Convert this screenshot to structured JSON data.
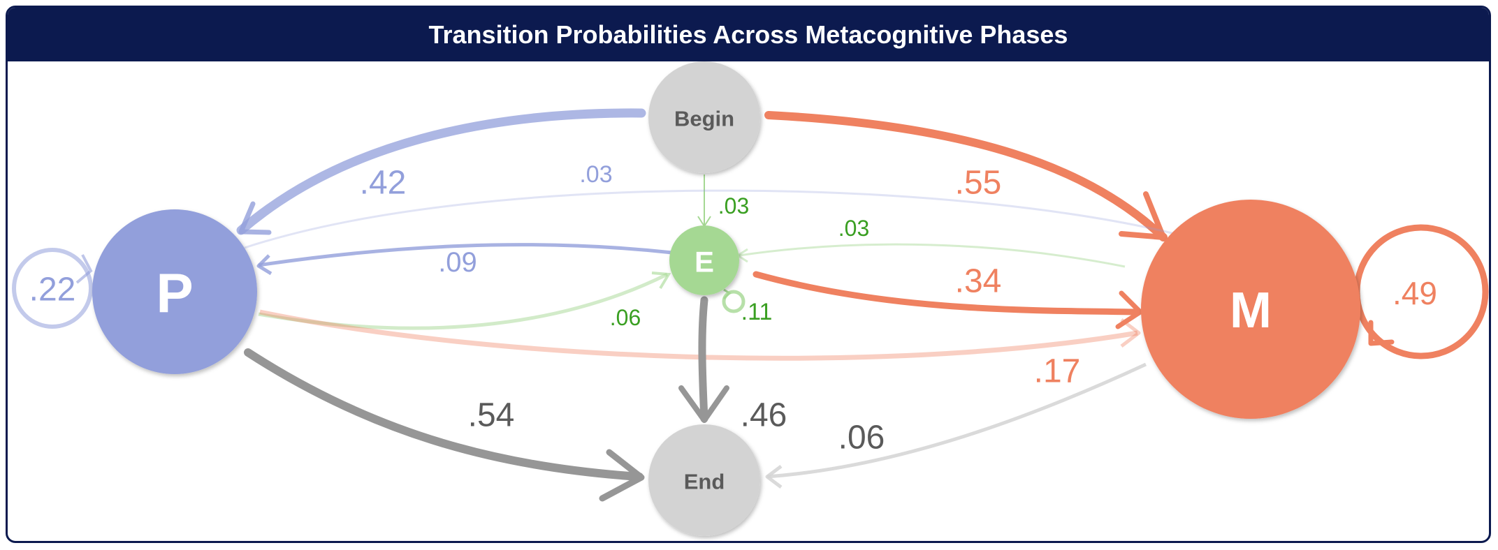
{
  "title": "Transition Probabilities Across Metacognitive Phases",
  "colors": {
    "frame": "#0c1a4f",
    "planning": "#929fdb",
    "monitoring": "#ef8160",
    "evaluation": "#a5d893",
    "neutral": "#d3d3d3",
    "neutral_text": "#5a5a5a",
    "end_edge": "#969696",
    "eval_text": "#3a9f22"
  },
  "nodes": {
    "begin": "Begin",
    "planning": "P",
    "evaluation": "E",
    "monitoring": "M",
    "end": "End"
  },
  "edges": {
    "begin_to_p": ".42",
    "begin_to_m": ".55",
    "begin_to_e": ".03",
    "m_to_p": ".03",
    "m_to_e": ".03",
    "e_to_p": ".09",
    "e_to_m": ".34",
    "p_to_e": ".06",
    "e_self": ".11",
    "p_self": ".22",
    "m_self": ".49",
    "p_to_m": ".17",
    "p_to_end": ".54",
    "e_to_end": ".46",
    "m_to_end": ".06"
  }
}
